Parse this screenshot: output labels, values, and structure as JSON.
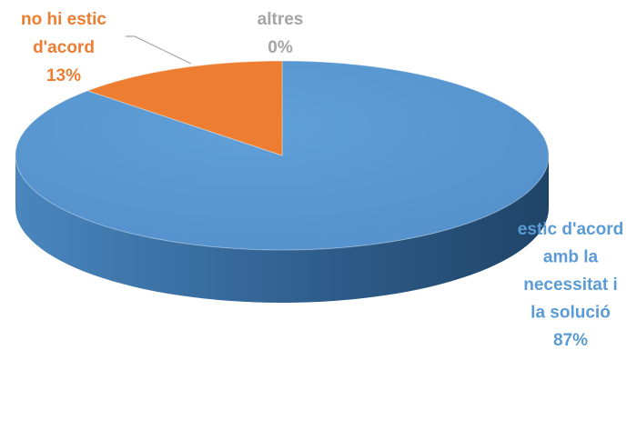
{
  "chart_data": {
    "type": "pie",
    "title": "",
    "categories": [
      "estic d'acord amb la necessitat i la solució",
      "no hi estic d'acord",
      "altres"
    ],
    "values": [
      87,
      13,
      0
    ],
    "slices": [
      {
        "name": "estic d'acord amb la necessitat i la solució",
        "label_lines": [
          "estic d'acord",
          "amb la",
          "necessitat i",
          "la solució"
        ],
        "value": 87,
        "value_label": "87%",
        "color": "#5b9bd5"
      },
      {
        "name": "no hi estic d'acord",
        "label_lines": [
          "no hi estic",
          "d'acord"
        ],
        "value": 13,
        "value_label": "13%",
        "color": "#ed7d31"
      },
      {
        "name": "altres",
        "label_lines": [
          "altres"
        ],
        "value": 0,
        "value_label": "0%",
        "color": "#a5a5a5"
      }
    ],
    "legend": "none",
    "style": "3d-pie"
  }
}
